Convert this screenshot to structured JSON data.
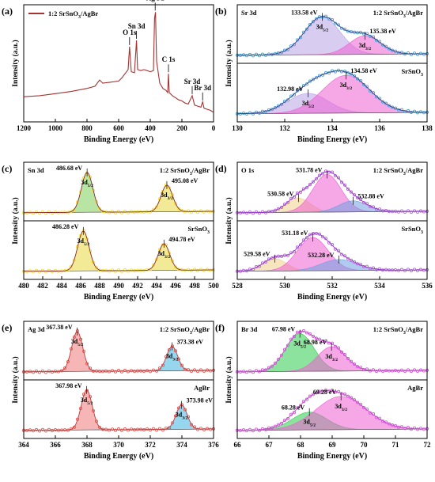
{
  "chart_data": [
    {
      "panel_letter": "(a)",
      "type": "line",
      "xlabel": "Binding Energy (eV)",
      "ylabel": "Intensity (a.u.)",
      "xlim": [
        1200,
        0
      ],
      "x_ticks": [
        1200,
        1000,
        800,
        600,
        400,
        200,
        0
      ],
      "legend": {
        "label": "1:2 SrSnO3/AgBr",
        "placement": "top-left"
      },
      "line_color": "#a83232",
      "series": [
        {
          "name": "1:2 SrSnO3/AgBr",
          "x": [
            1200,
            1100,
            1000,
            900,
            800,
            750,
            720,
            700,
            650,
            600,
            580,
            560,
            540,
            531,
            520,
            500,
            487,
            480,
            460,
            440,
            420,
            400,
            380,
            373,
            367,
            360,
            340,
            320,
            300,
            290,
            285,
            280,
            260,
            240,
            220,
            200,
            180,
            160,
            135,
            120,
            100,
            80,
            69,
            60,
            40,
            20,
            0
          ],
          "y": [
            0.18,
            0.19,
            0.21,
            0.23,
            0.26,
            0.28,
            0.34,
            0.31,
            0.32,
            0.33,
            0.36,
            0.4,
            0.44,
            0.66,
            0.42,
            0.41,
            0.72,
            0.44,
            0.43,
            0.44,
            0.43,
            0.42,
            0.43,
            0.93,
            0.99,
            0.52,
            0.31,
            0.26,
            0.24,
            0.22,
            0.4,
            0.22,
            0.19,
            0.17,
            0.15,
            0.14,
            0.12,
            0.11,
            0.19,
            0.1,
            0.09,
            0.08,
            0.13,
            0.07,
            0.06,
            0.05,
            0.03
          ]
        }
      ],
      "annotations": [
        {
          "text": "O 1s",
          "x": 531
        },
        {
          "text": "Sn 3d",
          "x": 487
        },
        {
          "text": "Ag 3d",
          "x": 369
        },
        {
          "text": "C 1s",
          "x": 285
        },
        {
          "text": "Sr 3d",
          "x": 135
        },
        {
          "text": "Br 3d",
          "x": 69
        }
      ]
    },
    {
      "panel_letter": "(b)",
      "region_label": "Sr 3d",
      "type": "line",
      "xlabel": "Binding Energy (eV)",
      "ylabel": "Intensity (a.u.)",
      "xlim": [
        130,
        138
      ],
      "x_ticks": [
        130,
        132,
        134,
        136,
        138
      ],
      "reverse_x": false,
      "colors": {
        "fill1": "#b9a3e6",
        "fill2": "#ee5fd2",
        "data": "#4aa3d4",
        "envelope": "#3d3d8c"
      },
      "subpanels": [
        {
          "sample_label": "1:2 SrSnO3/AgBr",
          "peaks": [
            {
              "label": "3d5/2",
              "center": 133.58,
              "amp": 0.85,
              "width": 0.75,
              "fill_color": "#b9a3e6",
              "value_text": "133.58 eV"
            },
            {
              "label": "3d3/2",
              "center": 135.38,
              "amp": 0.42,
              "width": 0.65,
              "fill_color": "#ee5fd2",
              "value_text": "135.38 eV"
            }
          ]
        },
        {
          "sample_label": "SrSnO3",
          "peaks": [
            {
              "label": "3d5/2",
              "center": 132.98,
              "amp": 0.45,
              "width": 0.85,
              "fill_color": "#b9a3e6",
              "value_text": "132.98 eV"
            },
            {
              "label": "3d3/2",
              "center": 134.58,
              "amp": 0.85,
              "width": 1.0,
              "fill_color": "#ee5fd2",
              "value_text": "134.58 eV"
            }
          ]
        }
      ]
    },
    {
      "panel_letter": "(c)",
      "region_label": "Sn 3d",
      "type": "line",
      "xlabel": "Binding Energy (eV)",
      "ylabel": "Intensity (a.u.)",
      "xlim": [
        480,
        500
      ],
      "x_ticks": [
        480,
        482,
        484,
        486,
        488,
        490,
        492,
        494,
        496,
        498,
        500
      ],
      "reverse_x": false,
      "colors": {
        "data": "#f0e040",
        "envelope": "#8b2b2b"
      },
      "subpanels": [
        {
          "sample_label": "1:2 SrSnO3/AgBr",
          "peaks": [
            {
              "label": "3d5/2",
              "center": 486.68,
              "amp": 0.9,
              "width": 0.6,
              "fill_color": "#7fcf5a",
              "value_text": "486.68 eV"
            },
            {
              "label": "3d3/2",
              "center": 495.08,
              "amp": 0.6,
              "width": 0.6,
              "fill_color": "#e8d840",
              "value_text": "495.08 eV"
            }
          ]
        },
        {
          "sample_label": "SrSnO3",
          "peaks": [
            {
              "label": "3d5/2",
              "center": 486.28,
              "amp": 0.9,
              "width": 0.6,
              "fill_color": "#e8d840",
              "value_text": "486.28 eV"
            },
            {
              "label": "3d3/2",
              "center": 494.78,
              "amp": 0.6,
              "width": 0.6,
              "fill_color": "#e8d840",
              "value_text": "494.78 eV"
            }
          ]
        }
      ]
    },
    {
      "panel_letter": "(d)",
      "region_label": "O 1s",
      "type": "line",
      "xlabel": "Binding Energy (eV)",
      "ylabel": "Intensity (a.u.)",
      "xlim": [
        528,
        536
      ],
      "x_ticks": [
        528,
        530,
        532,
        534,
        536
      ],
      "reverse_x": false,
      "colors": {
        "data": "#b06ad9",
        "envelope": "#9b3bc9"
      },
      "subpanels": [
        {
          "sample_label": "1:2 SrSnO3/AgBr",
          "peaks": [
            {
              "center": 530.58,
              "amp": 0.32,
              "width": 0.5,
              "fill_color": "#f0d08a",
              "value_text": "530.58 eV"
            },
            {
              "center": 531.78,
              "amp": 0.85,
              "width": 0.6,
              "fill_color": "#ee5fd2",
              "value_text": "531.78 eV"
            },
            {
              "center": 532.88,
              "amp": 0.25,
              "width": 0.6,
              "fill_color": "#6fa0e0",
              "value_text": "532.88 eV"
            }
          ]
        },
        {
          "sample_label": "SrSnO3",
          "peaks": [
            {
              "center": 529.58,
              "amp": 0.28,
              "width": 0.5,
              "fill_color": "#f0d08a",
              "value_text": "529.58 eV"
            },
            {
              "center": 531.18,
              "amp": 0.75,
              "width": 0.65,
              "fill_color": "#ee5fd2",
              "value_text": "531.18 eV"
            },
            {
              "center": 532.28,
              "amp": 0.25,
              "width": 0.75,
              "fill_color": "#6fa0e0",
              "value_text": "532.28 eV"
            }
          ]
        }
      ]
    },
    {
      "panel_letter": "(e)",
      "region_label": "Ag 3d",
      "type": "line",
      "xlabel": "Binding Energy (eV)",
      "ylabel": "Intensity (a.u.)",
      "xlim": [
        364,
        376
      ],
      "x_ticks": [
        364,
        366,
        368,
        370,
        372,
        374,
        376
      ],
      "reverse_x": false,
      "colors": {
        "data": "#e0605a",
        "envelope": "#c04040"
      },
      "subpanels": [
        {
          "sample_label": "1:2 SrSnO3/AgBr",
          "peaks": [
            {
              "label": "3d5/2",
              "center": 367.38,
              "amp": 0.9,
              "width": 0.35,
              "fill_color": "#ef7a7a",
              "value_text": "367.38 eV"
            },
            {
              "label": "3d3/2",
              "center": 373.38,
              "amp": 0.55,
              "width": 0.35,
              "fill_color": "#3fb4e0",
              "value_text": "373.38 eV"
            }
          ]
        },
        {
          "sample_label": "AgBr",
          "peaks": [
            {
              "label": "3d5/2",
              "center": 367.98,
              "amp": 0.9,
              "width": 0.35,
              "fill_color": "#ef7a7a",
              "value_text": "367.98 eV"
            },
            {
              "label": "3d3/2",
              "center": 373.98,
              "amp": 0.55,
              "width": 0.35,
              "fill_color": "#3fb4e0",
              "value_text": "373.98 eV"
            }
          ]
        }
      ]
    },
    {
      "panel_letter": "(f)",
      "region_label": "Br 3d",
      "type": "line",
      "xlabel": "Binding Energy (eV)",
      "ylabel": "Intensity (a.u.)",
      "xlim": [
        66,
        72
      ],
      "x_ticks": [
        66,
        67,
        68,
        69,
        70,
        71,
        72
      ],
      "reverse_x": false,
      "colors": {
        "data": "#d35ad9",
        "envelope": "#c84ecf"
      },
      "subpanels": [
        {
          "sample_label": "1:2 SrSnO3/AgBr",
          "peaks": [
            {
              "label": "3d5/2",
              "center": 67.98,
              "amp": 0.85,
              "width": 0.45,
              "fill_color": "#2ecc4e",
              "value_text": "67.98 eV"
            },
            {
              "label": "3d3/2",
              "center": 68.98,
              "amp": 0.55,
              "width": 0.45,
              "fill_color": "#ee5fd2",
              "value_text": "68.98 eV"
            }
          ]
        },
        {
          "sample_label": "AgBr",
          "peaks": [
            {
              "label": "3d5/2",
              "center": 68.28,
              "amp": 0.4,
              "width": 0.55,
              "fill_color": "#2ecc4e",
              "value_text": "68.28 eV"
            },
            {
              "label": "3d3/2",
              "center": 69.28,
              "amp": 0.75,
              "width": 0.8,
              "fill_color": "#ee5fd2",
              "value_text": "69.28 eV"
            }
          ]
        }
      ]
    }
  ]
}
